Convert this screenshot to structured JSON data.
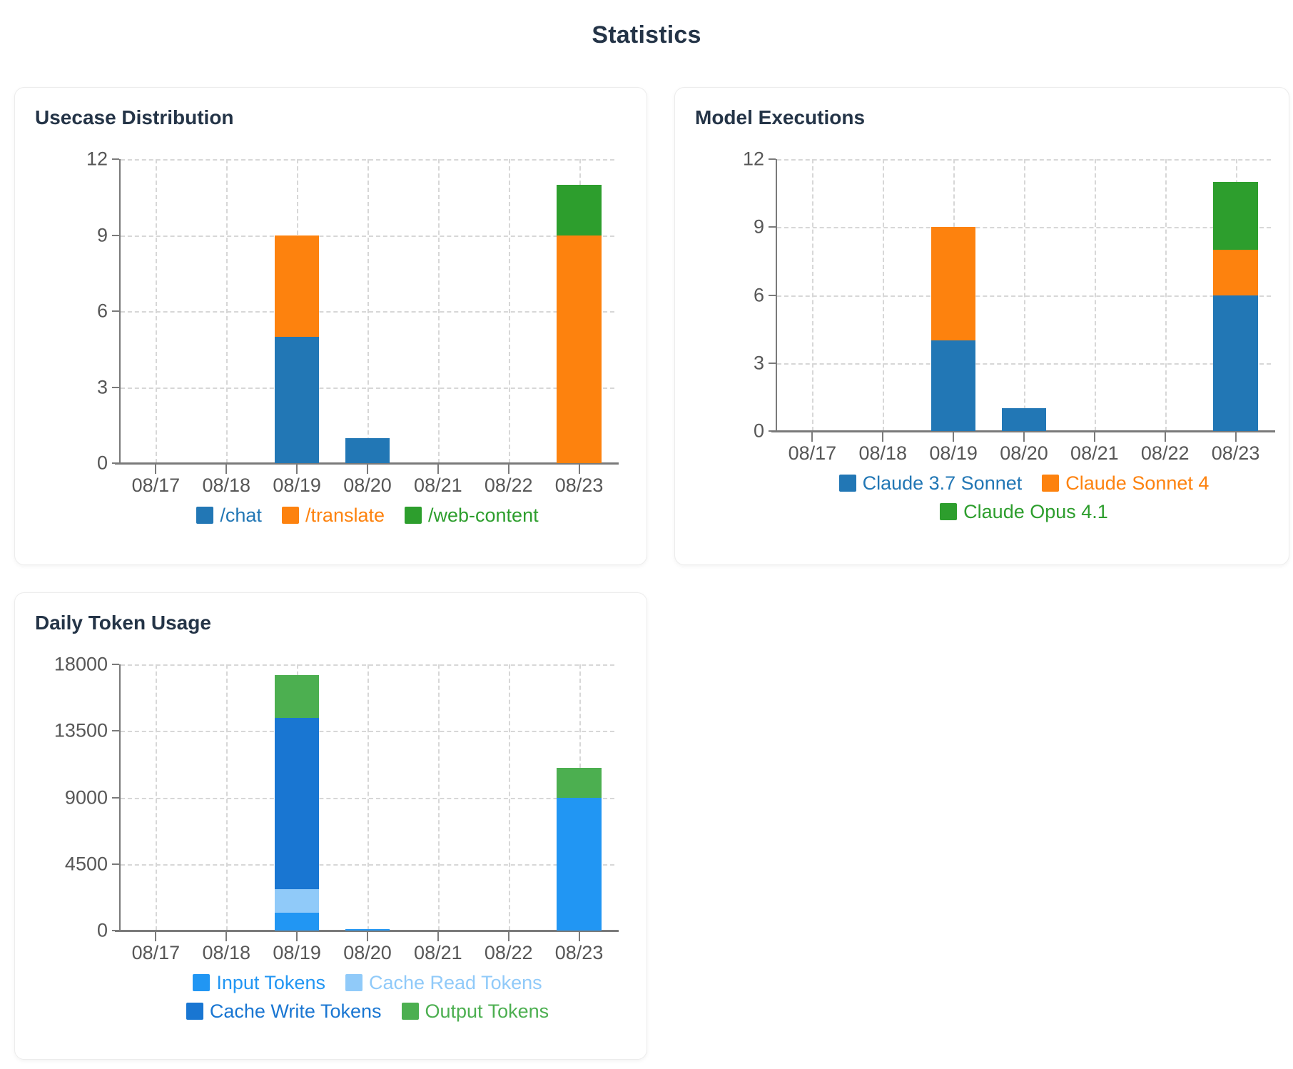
{
  "page_title": "Statistics",
  "chart_data": [
    {
      "type": "bar",
      "stacked": true,
      "title": "Usecase Distribution",
      "categories": [
        "08/17",
        "08/18",
        "08/19",
        "08/20",
        "08/21",
        "08/22",
        "08/23"
      ],
      "series": [
        {
          "name": "/chat",
          "color": "#2277b5",
          "values": [
            0,
            0,
            5,
            1,
            0,
            0,
            0
          ]
        },
        {
          "name": "/translate",
          "color": "#fd820e",
          "values": [
            0,
            0,
            4,
            0,
            0,
            0,
            9
          ]
        },
        {
          "name": "/web-content",
          "color": "#2d9e2d",
          "values": [
            0,
            0,
            0,
            0,
            0,
            0,
            2
          ]
        }
      ],
      "xlabel": "",
      "ylabel": "",
      "ylim": [
        0,
        12
      ],
      "yticks": [
        0,
        3,
        6,
        9,
        12
      ],
      "grid": true,
      "legend_position": "bottom"
    },
    {
      "type": "bar",
      "stacked": true,
      "title": "Model Executions",
      "categories": [
        "08/17",
        "08/18",
        "08/19",
        "08/20",
        "08/21",
        "08/22",
        "08/23"
      ],
      "series": [
        {
          "name": "Claude 3.7 Sonnet",
          "color": "#2277b5",
          "values": [
            0,
            0,
            4,
            1,
            0,
            0,
            6
          ]
        },
        {
          "name": "Claude Sonnet 4",
          "color": "#fd820e",
          "values": [
            0,
            0,
            5,
            0,
            0,
            0,
            2
          ]
        },
        {
          "name": "Claude Opus 4.1",
          "color": "#2d9e2d",
          "values": [
            0,
            0,
            0,
            0,
            0,
            0,
            3
          ]
        }
      ],
      "xlabel": "",
      "ylabel": "",
      "ylim": [
        0,
        12
      ],
      "yticks": [
        0,
        3,
        6,
        9,
        12
      ],
      "grid": true,
      "legend_position": "bottom"
    },
    {
      "type": "bar",
      "stacked": true,
      "title": "Daily Token Usage",
      "categories": [
        "08/17",
        "08/18",
        "08/19",
        "08/20",
        "08/21",
        "08/22",
        "08/23"
      ],
      "series": [
        {
          "name": "Input Tokens",
          "color": "#2196f3",
          "values": [
            0,
            0,
            1200,
            100,
            0,
            0,
            9000
          ]
        },
        {
          "name": "Cache Read Tokens",
          "color": "#90caf9",
          "values": [
            0,
            0,
            1600,
            0,
            0,
            0,
            0
          ]
        },
        {
          "name": "Cache Write Tokens",
          "color": "#1976d2",
          "values": [
            0,
            0,
            11600,
            0,
            0,
            0,
            0
          ]
        },
        {
          "name": "Output Tokens",
          "color": "#4caf50",
          "values": [
            0,
            0,
            2900,
            0,
            0,
            0,
            2000
          ]
        }
      ],
      "xlabel": "",
      "ylabel": "",
      "ylim": [
        0,
        18000
      ],
      "yticks": [
        0,
        4500,
        9000,
        13500,
        18000
      ],
      "grid": true,
      "legend_position": "bottom"
    }
  ]
}
